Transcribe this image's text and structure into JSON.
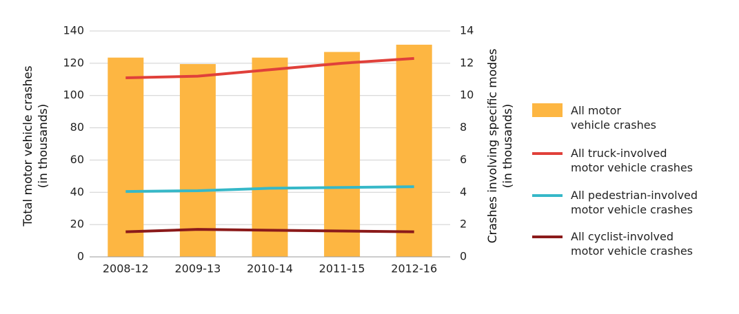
{
  "chart_data": {
    "type": "bar",
    "categories": [
      "2008-12",
      "2009-13",
      "2010-14",
      "2011-15",
      "2012-16"
    ],
    "y_label": "Total motor vehicle crashes\n(in thousands)",
    "y2_label": "Crashes involving specific modes\n(in thousands)",
    "ylim": [
      0,
      140
    ],
    "yticks": [
      0,
      20,
      40,
      60,
      80,
      100,
      120,
      140
    ],
    "y2lim": [
      0,
      14
    ],
    "y2ticks": [
      0,
      2,
      4,
      6,
      8,
      10,
      12,
      14
    ],
    "grid": true,
    "series": [
      {
        "name": "All motor\nvehicle crashes",
        "type": "bar",
        "color": "#fdb642",
        "values": [
          123.5,
          119.5,
          123.5,
          127,
          131.5
        ]
      },
      {
        "name": "All truck-involved\n motor vehicle crashes",
        "type": "line",
        "axis": "y2",
        "color": "#e0403a",
        "values": [
          11.1,
          11.2,
          11.6,
          12.0,
          12.3
        ]
      },
      {
        "name": "All pedestrian-involved\nmotor vehicle crashes",
        "type": "line",
        "axis": "y2",
        "color": "#36b8c8",
        "values": [
          4.05,
          4.1,
          4.25,
          4.3,
          4.35
        ]
      },
      {
        "name": "All cyclist-involved\nmotor vehicle crashes",
        "type": "line",
        "axis": "y2",
        "color": "#8b1a1a",
        "values": [
          1.55,
          1.7,
          1.65,
          1.6,
          1.55
        ]
      }
    ]
  }
}
